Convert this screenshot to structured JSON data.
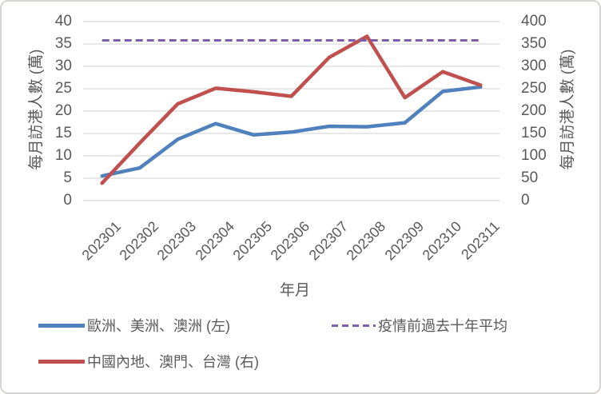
{
  "chart_data": {
    "type": "line",
    "title": "",
    "xlabel": "年月",
    "categories": [
      "202301",
      "202302",
      "202303",
      "202304",
      "202305",
      "202306",
      "202307",
      "202308",
      "202309",
      "202310",
      "202311"
    ],
    "left_axis": {
      "title": "每月訪港人數 (萬)",
      "min": 0,
      "max": 40,
      "step": 5,
      "ticks": [
        0,
        5,
        10,
        15,
        20,
        25,
        30,
        35,
        40
      ]
    },
    "right_axis": {
      "title": "每月訪港人數 (萬)",
      "min": 0,
      "max": 400,
      "step": 50,
      "ticks": [
        0,
        50,
        100,
        150,
        200,
        250,
        300,
        350,
        400
      ]
    },
    "grid": true,
    "legend_position": "bottom",
    "series": [
      {
        "key": "europe-americas-australia",
        "name": "歐洲、美洲、澳洲 (左)",
        "axis": "left",
        "color": "#4F81BD",
        "style": "solid",
        "values": [
          5.5,
          7.3,
          13.7,
          17.2,
          14.7,
          15.3,
          16.6,
          16.5,
          17.4,
          24.4,
          25.4
        ]
      },
      {
        "key": "mainland-macau-taiwan",
        "name": "中國內地、澳門、台灣 (右)",
        "axis": "right",
        "color": "#C0504D",
        "style": "solid",
        "values": [
          39,
          129,
          216,
          251,
          243,
          233,
          320,
          367,
          230,
          288,
          258
        ]
      },
      {
        "key": "pre-pandemic-10yr-average",
        "name": "疫情前過去十年平均",
        "axis": "right",
        "color": "#7C5FA8",
        "style": "dashed",
        "values": [
          358,
          358,
          358,
          358,
          358,
          358,
          358,
          358,
          358,
          358,
          358
        ]
      }
    ],
    "gridline_color": "#D9D9D9",
    "text_color": "#595959"
  }
}
